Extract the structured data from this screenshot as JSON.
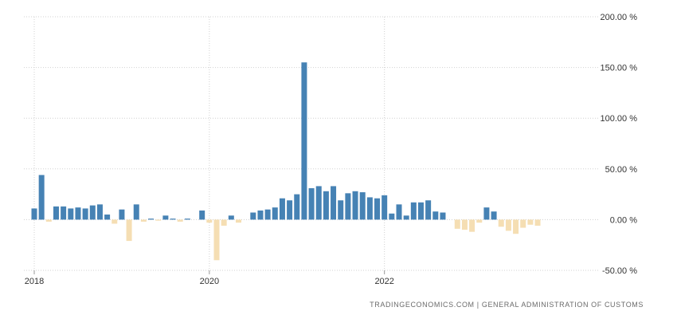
{
  "chart_data": {
    "type": "bar",
    "ylim": [
      -50,
      200
    ],
    "yticks": [
      "200.00 %",
      "150.00 %",
      "100.00 %",
      "50.00 %",
      "0.00 %",
      "-50.00 %"
    ],
    "ytick_values": [
      200,
      150,
      100,
      50,
      0,
      -50
    ],
    "xticks": [
      "2018",
      "2020",
      "2022"
    ],
    "grid": true,
    "colors": {
      "positive": "#4682b4",
      "negative": "#f5deb3",
      "grid": "#d0d0d0"
    },
    "x": [
      "2018-01",
      "2018-02",
      "2018-03",
      "2018-04",
      "2018-05",
      "2018-06",
      "2018-07",
      "2018-08",
      "2018-09",
      "2018-10",
      "2018-11",
      "2018-12",
      "2019-01",
      "2019-02",
      "2019-03",
      "2019-04",
      "2019-05",
      "2019-06",
      "2019-07",
      "2019-08",
      "2019-09",
      "2019-10",
      "2019-11",
      "2019-12",
      "2020-01",
      "2020-02",
      "2020-03",
      "2020-04",
      "2020-05",
      "2020-06",
      "2020-07",
      "2020-08",
      "2020-09",
      "2020-10",
      "2020-11",
      "2020-12",
      "2021-01",
      "2021-02",
      "2021-03",
      "2021-04",
      "2021-05",
      "2021-06",
      "2021-07",
      "2021-08",
      "2021-09",
      "2021-10",
      "2021-11",
      "2021-12",
      "2022-01",
      "2022-02",
      "2022-03",
      "2022-04",
      "2022-05",
      "2022-06",
      "2022-07",
      "2022-08",
      "2022-09",
      "2022-10",
      "2022-11",
      "2022-12",
      "2023-01",
      "2023-02",
      "2023-03",
      "2023-04",
      "2023-05",
      "2023-06",
      "2023-07",
      "2023-08",
      "2023-09",
      "2023-10",
      "2023-11",
      "2023-12"
    ],
    "values": [
      11,
      44,
      -2,
      13,
      13,
      11,
      12,
      11,
      14,
      15,
      5,
      -4,
      10,
      -21,
      15,
      -2,
      1,
      -1,
      4,
      1,
      -2,
      1,
      0,
      9,
      -3,
      -40,
      -6,
      4,
      -3,
      0,
      7,
      9,
      10,
      12,
      21,
      19,
      25,
      155,
      31,
      33,
      28,
      33,
      19,
      26,
      28,
      27,
      22,
      21,
      24,
      6,
      15,
      4,
      17,
      17,
      19,
      8,
      7,
      0,
      -9,
      -10,
      -12,
      -3,
      12,
      8,
      -7,
      -11,
      -14,
      -8,
      -5,
      -6,
      0,
      0
    ]
  },
  "source": {
    "site": "TRADINGECONOMICS.COM",
    "separator": "|",
    "provider": "GENERAL ADMINISTRATION OF CUSTOMS"
  }
}
